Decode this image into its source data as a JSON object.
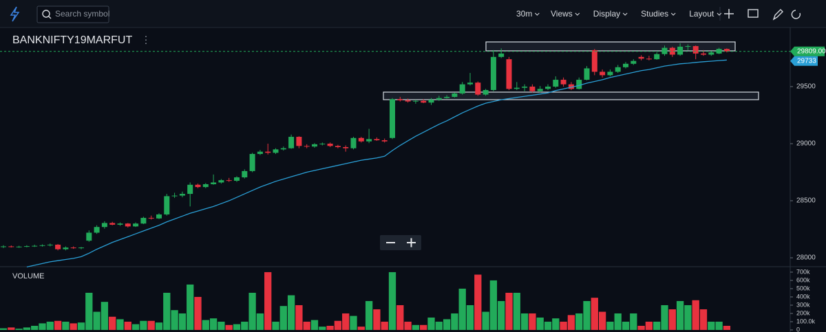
{
  "toolbar": {
    "search_placeholder": "Search symbol",
    "interval": "30m",
    "menus": [
      "Views",
      "Display",
      "Studies",
      "Layout"
    ]
  },
  "chart_data": {
    "type": "candlestick",
    "title": "BANKNIFTY19MARFUT",
    "up_color": "#22ab5a",
    "down_color": "#e8323f",
    "ohlc": [
      [
        28095,
        28110,
        28085,
        28100
      ],
      [
        28100,
        28108,
        28090,
        28095
      ],
      [
        28095,
        28105,
        28088,
        28098
      ],
      [
        28098,
        28110,
        28092,
        28102
      ],
      [
        28102,
        28115,
        28095,
        28105
      ],
      [
        28105,
        28118,
        28098,
        28110
      ],
      [
        28110,
        28125,
        28100,
        28115
      ],
      [
        28115,
        28120,
        28065,
        28075
      ],
      [
        28075,
        28100,
        28065,
        28090
      ],
      [
        28090,
        28100,
        28078,
        28085
      ],
      [
        28085,
        28095,
        28075,
        28090
      ],
      [
        28150,
        28240,
        28140,
        28220
      ],
      [
        28220,
        28285,
        28210,
        28270
      ],
      [
        28270,
        28320,
        28255,
        28305
      ],
      [
        28305,
        28315,
        28285,
        28290
      ],
      [
        28290,
        28310,
        28280,
        28300
      ],
      [
        28300,
        28305,
        28265,
        28275
      ],
      [
        28275,
        28310,
        28270,
        28300
      ],
      [
        28300,
        28360,
        28295,
        28350
      ],
      [
        28350,
        28370,
        28335,
        28345
      ],
      [
        28345,
        28390,
        28340,
        28380
      ],
      [
        28380,
        28560,
        28370,
        28540
      ],
      [
        28540,
        28570,
        28525,
        28545
      ],
      [
        28545,
        28580,
        28530,
        28560
      ],
      [
        28560,
        28660,
        28450,
        28640
      ],
      [
        28640,
        28650,
        28610,
        28620
      ],
      [
        28620,
        28655,
        28610,
        28645
      ],
      [
        28645,
        28730,
        28640,
        28660
      ],
      [
        28660,
        28690,
        28650,
        28680
      ],
      [
        28680,
        28700,
        28665,
        28675
      ],
      [
        28675,
        28715,
        28665,
        28705
      ],
      [
        28705,
        28775,
        28695,
        28760
      ],
      [
        28760,
        28920,
        28750,
        28910
      ],
      [
        28910,
        28945,
        28900,
        28930
      ],
      [
        28930,
        29000,
        28905,
        28920
      ],
      [
        28920,
        28960,
        28910,
        28950
      ],
      [
        28950,
        28975,
        28940,
        28960
      ],
      [
        28960,
        29080,
        28955,
        29060
      ],
      [
        29060,
        29065,
        28960,
        28980
      ],
      [
        28980,
        28995,
        28960,
        28975
      ],
      [
        28975,
        29005,
        28965,
        28995
      ],
      [
        28995,
        29010,
        28985,
        29000
      ],
      [
        29000,
        29010,
        28970,
        28980
      ],
      [
        28980,
        28990,
        28960,
        28970
      ],
      [
        28970,
        28985,
        28930,
        28960
      ],
      [
        28960,
        29060,
        28950,
        29050
      ],
      [
        29050,
        29060,
        29010,
        29020
      ],
      [
        29020,
        29130,
        29005,
        29040
      ],
      [
        29040,
        29055,
        29025,
        29030
      ],
      [
        29030,
        29045,
        29010,
        29020
      ],
      [
        29050,
        29400,
        29040,
        29390
      ],
      [
        29390,
        29410,
        29370,
        29380
      ],
      [
        29380,
        29395,
        29360,
        29370
      ],
      [
        29370,
        29385,
        29350,
        29375
      ],
      [
        29375,
        29390,
        29355,
        29360
      ],
      [
        29360,
        29400,
        29340,
        29385
      ],
      [
        29385,
        29420,
        29375,
        29400
      ],
      [
        29400,
        29425,
        29395,
        29410
      ],
      [
        29410,
        29450,
        29405,
        29440
      ],
      [
        29440,
        29540,
        29430,
        29520
      ],
      [
        29520,
        29620,
        29510,
        29535
      ],
      [
        29535,
        29545,
        29420,
        29430
      ],
      [
        29430,
        29480,
        29420,
        29470
      ],
      [
        29470,
        29820,
        29460,
        29760
      ],
      [
        29760,
        29835,
        29750,
        29790
      ],
      [
        29740,
        29760,
        29470,
        29480
      ],
      [
        29480,
        29540,
        29470,
        29490
      ],
      [
        29490,
        29520,
        29460,
        29500
      ],
      [
        29500,
        29520,
        29450,
        29460
      ],
      [
        29460,
        29505,
        29450,
        29480
      ],
      [
        29480,
        29520,
        29470,
        29500
      ],
      [
        29500,
        29590,
        29490,
        29560
      ],
      [
        29560,
        29580,
        29500,
        29520
      ],
      [
        29520,
        29540,
        29470,
        29480
      ],
      [
        29480,
        29580,
        29475,
        29560
      ],
      [
        29560,
        29680,
        29555,
        29660
      ],
      [
        29820,
        29830,
        29600,
        29630
      ],
      [
        29630,
        29650,
        29580,
        29600
      ],
      [
        29600,
        29650,
        29590,
        29630
      ],
      [
        29630,
        29690,
        29620,
        29670
      ],
      [
        29670,
        29715,
        29660,
        29700
      ],
      [
        29700,
        29740,
        29690,
        29725
      ],
      [
        29760,
        29775,
        29730,
        29745
      ],
      [
        29745,
        29770,
        29730,
        29740
      ],
      [
        29740,
        29800,
        29735,
        29785
      ],
      [
        29785,
        29860,
        29770,
        29840
      ],
      [
        29840,
        29850,
        29760,
        29780
      ],
      [
        29780,
        29880,
        29770,
        29850
      ],
      [
        29850,
        29870,
        29820,
        29855
      ],
      [
        29855,
        29860,
        29740,
        29790
      ],
      [
        29790,
        29820,
        29770,
        29780
      ],
      [
        29780,
        29810,
        29770,
        29800
      ],
      [
        29790,
        29840,
        29785,
        29830
      ],
      [
        29830,
        29835,
        29800,
        29809
      ]
    ],
    "ylim": [
      27922,
      30018
    ],
    "yticks": [
      28000,
      28500,
      29000,
      29500
    ],
    "grid": false,
    "last_price": {
      "value": 29809,
      "label": "29809.00"
    },
    "ma": {
      "color": "#2a9fd6",
      "values": [
        null,
        null,
        null,
        27920,
        27935,
        27950,
        27965,
        27975,
        27985,
        27995,
        28010,
        28040,
        28075,
        28105,
        28135,
        28160,
        28185,
        28210,
        28235,
        28260,
        28285,
        28315,
        28340,
        28365,
        28390,
        28410,
        28430,
        28450,
        28475,
        28500,
        28530,
        28560,
        28590,
        28620,
        28645,
        28670,
        28690,
        28710,
        28730,
        28750,
        28765,
        28780,
        28795,
        28810,
        28825,
        28840,
        28855,
        28865,
        28875,
        28890,
        28940,
        28985,
        29025,
        29065,
        29100,
        29135,
        29170,
        29200,
        29235,
        29270,
        29300,
        29330,
        29355,
        29370,
        29385,
        29395,
        29405,
        29415,
        29425,
        29435,
        29445,
        29465,
        29480,
        29495,
        29510,
        29530,
        29545,
        29560,
        29580,
        29595,
        29610,
        29625,
        29640,
        29650,
        29665,
        29680,
        29690,
        29700,
        29705,
        29712,
        29718,
        29723,
        29728,
        29733
      ]
    },
    "volume": {
      "title": "VOLUME",
      "values": [
        20000,
        30000,
        15000,
        30000,
        50000,
        80000,
        100000,
        110000,
        100000,
        80000,
        90000,
        450000,
        220000,
        340000,
        160000,
        130000,
        100000,
        70000,
        110000,
        110000,
        90000,
        450000,
        240000,
        200000,
        550000,
        400000,
        120000,
        140000,
        100000,
        60000,
        70000,
        100000,
        450000,
        200000,
        700000,
        100000,
        290000,
        420000,
        300000,
        100000,
        120000,
        40000,
        50000,
        110000,
        200000,
        170000,
        40000,
        350000,
        250000,
        100000,
        700000,
        300000,
        100000,
        60000,
        60000,
        150000,
        100000,
        130000,
        200000,
        500000,
        300000,
        670000,
        220000,
        600000,
        350000,
        450000,
        450000,
        200000,
        200000,
        150000,
        100000,
        140000,
        100000,
        180000,
        200000,
        350000,
        390000,
        220000,
        100000,
        200000,
        100000,
        200000,
        50000,
        100000,
        100000,
        300000,
        250000,
        350000,
        300000,
        360000,
        250000,
        100000,
        100000,
        50000
      ],
      "ylim": [
        0,
        766000
      ],
      "yticks": [
        0,
        {
          "value": 100000,
          "label": "100.0k"
        },
        {
          "value": 200000,
          "label": "200k"
        },
        {
          "value": 300000,
          "label": "300k"
        },
        {
          "value": 400000,
          "label": "400k"
        },
        {
          "value": 500000,
          "label": "500k"
        },
        {
          "value": 600000,
          "label": "600k"
        },
        {
          "value": 700000,
          "label": "700k"
        }
      ]
    }
  }
}
